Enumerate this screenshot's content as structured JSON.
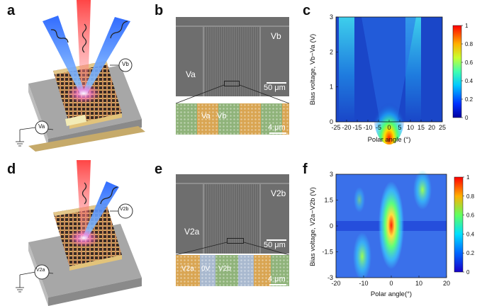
{
  "panels": {
    "a": "a",
    "b": "b",
    "c": "c",
    "d": "d",
    "e": "e",
    "f": "f"
  },
  "schematic_a": {
    "probe_top": "Vb",
    "probe_bottom": "Va"
  },
  "schematic_d": {
    "probe_top": "V2b",
    "probe_bottom": "V2a"
  },
  "sem_b": {
    "label_left": "Va",
    "label_right": "Vb",
    "scalebar": "50 μm",
    "zoom_label_1": "Va",
    "zoom_label_2": "Vb",
    "zoom_scalebar": "4 μm"
  },
  "sem_e": {
    "label_left": "V2a",
    "label_right": "V2b",
    "scalebar": "50 μm",
    "zoom_label_1": "V2a",
    "zoom_label_2": "0V",
    "zoom_label_3": "V2b",
    "zoom_scalebar": "4 μm"
  },
  "colors": {
    "jet_blue": "#1a46c8",
    "jet_cyan": "#3fd0ff",
    "jet_green": "#66ee55",
    "jet_red": "#ff2000",
    "sem_gray": "#6e6e6e",
    "stripe_green": "#8fb37a",
    "stripe_orange": "#d9a552",
    "stripe_blue": "#a9b9cf"
  },
  "chart_data": [
    {
      "id": "c",
      "type": "heatmap",
      "xlabel": "Polar angle (°)",
      "ylabel": "Bias voltage, Vb−Va (V)",
      "xlim": [
        -25,
        25
      ],
      "ylim": [
        0,
        3
      ],
      "xticks": [
        "-25",
        "-20",
        "-15",
        "-10",
        "-5",
        "0",
        "5",
        "10",
        "15",
        "20",
        "25"
      ],
      "yticks": [
        "0",
        "1",
        "2",
        "3"
      ],
      "colorbar": {
        "min": 0,
        "max": 1,
        "ticks": [
          "0",
          "0.2",
          "0.4",
          "0.6",
          "0.8",
          "1"
        ]
      }
    },
    {
      "id": "f",
      "type": "heatmap",
      "xlabel": "Polar angle(°)",
      "ylabel": "Bias voltage, V2a−V2b (V)",
      "xlim": [
        -20,
        20
      ],
      "ylim": [
        -3,
        3
      ],
      "xticks": [
        "-20",
        "-10",
        "0",
        "10",
        "20"
      ],
      "yticks": [
        "-3",
        "-1.5",
        "0",
        "1.5",
        "3"
      ],
      "colorbar": {
        "min": 0,
        "max": 1,
        "ticks": [
          "0",
          "0.2",
          "0.4",
          "0.6",
          "0.8",
          "1"
        ]
      }
    }
  ]
}
